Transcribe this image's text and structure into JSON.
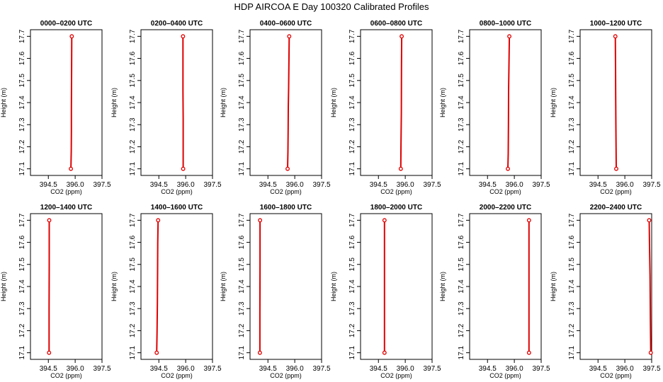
{
  "title": "HDP AIRCOA E  Day 100320  Calibrated Profiles",
  "style": {
    "line_color": "#e00000",
    "frame_color": "#000000"
  },
  "chart_data": [
    {
      "type": "line",
      "title": "0000–0200 UTC",
      "xlabel": "CO2 (ppm)",
      "ylabel": "Height (m)",
      "xlim": [
        393.5,
        397.5
      ],
      "ylim": [
        17.07,
        17.73
      ],
      "xticks": [
        "394.5",
        "396.0",
        "397.5"
      ],
      "yticks": [
        "17.1",
        "17.2",
        "17.3",
        "17.4",
        "17.5",
        "17.6",
        "17.7"
      ],
      "series": [
        {
          "x": [
            395.76,
            395.78,
            395.79,
            395.79,
            395.8,
            395.81
          ],
          "y": [
            17.1,
            17.18,
            17.27,
            17.37,
            17.56,
            17.7
          ]
        }
      ]
    },
    {
      "type": "line",
      "title": "0200–0400 UTC",
      "xlabel": "CO2 (ppm)",
      "ylabel": "Height (m)",
      "xlim": [
        393.5,
        397.5
      ],
      "ylim": [
        17.07,
        17.73
      ],
      "xticks": [
        "394.5",
        "396.0",
        "397.5"
      ],
      "yticks": [
        "17.1",
        "17.2",
        "17.3",
        "17.4",
        "17.5",
        "17.6",
        "17.7"
      ],
      "series": [
        {
          "x": [
            395.86,
            395.86,
            395.85,
            395.85
          ],
          "y": [
            17.1,
            17.33,
            17.45,
            17.7
          ]
        }
      ]
    },
    {
      "type": "line",
      "title": "0400–0600 UTC",
      "xlabel": "CO2 (ppm)",
      "ylabel": "Height (m)",
      "xlim": [
        393.5,
        397.5
      ],
      "ylim": [
        17.07,
        17.73
      ],
      "xticks": [
        "394.5",
        "396.0",
        "397.5"
      ],
      "yticks": [
        "17.1",
        "17.2",
        "17.3",
        "17.4",
        "17.5",
        "17.6",
        "17.7"
      ],
      "series": [
        {
          "x": [
            395.6,
            395.62,
            395.63,
            395.64,
            395.66,
            395.69
          ],
          "y": [
            17.1,
            17.18,
            17.28,
            17.38,
            17.47,
            17.7
          ]
        }
      ]
    },
    {
      "type": "line",
      "title": "0600–0800 UTC",
      "xlabel": "CO2 (ppm)",
      "ylabel": "Height (m)",
      "xlim": [
        393.5,
        397.5
      ],
      "ylim": [
        17.07,
        17.73
      ],
      "xticks": [
        "394.5",
        "396.0",
        "397.5"
      ],
      "yticks": [
        "17.1",
        "17.2",
        "17.3",
        "17.4",
        "17.5",
        "17.6",
        "17.7"
      ],
      "series": [
        {
          "x": [
            395.75,
            395.76,
            395.78,
            395.79,
            395.8
          ],
          "y": [
            17.1,
            17.21,
            17.35,
            17.56,
            17.7
          ]
        }
      ]
    },
    {
      "type": "line",
      "title": "0800–1000 UTC",
      "xlabel": "CO2 (ppm)",
      "ylabel": "Height (m)",
      "xlim": [
        393.5,
        397.5
      ],
      "ylim": [
        17.07,
        17.73
      ],
      "xticks": [
        "394.5",
        "396.0",
        "397.5"
      ],
      "yticks": [
        "17.1",
        "17.2",
        "17.3",
        "17.4",
        "17.5",
        "17.6",
        "17.7"
      ],
      "series": [
        {
          "x": [
            395.64,
            395.66,
            395.67,
            395.68,
            395.7,
            395.72
          ],
          "y": [
            17.1,
            17.17,
            17.3,
            17.45,
            17.56,
            17.7
          ]
        }
      ]
    },
    {
      "type": "line",
      "title": "1000–1200 UTC",
      "xlabel": "CO2 (ppm)",
      "ylabel": "Height (m)",
      "xlim": [
        393.5,
        397.5
      ],
      "ylim": [
        17.07,
        17.73
      ],
      "xticks": [
        "394.5",
        "396.0",
        "397.5"
      ],
      "yticks": [
        "17.1",
        "17.2",
        "17.3",
        "17.4",
        "17.5",
        "17.6",
        "17.7"
      ],
      "series": [
        {
          "x": [
            395.52,
            395.5,
            395.49,
            395.48,
            395.47
          ],
          "y": [
            17.1,
            17.29,
            17.43,
            17.56,
            17.7
          ]
        }
      ]
    },
    {
      "type": "line",
      "title": "1200–1400 UTC",
      "xlabel": "CO2 (ppm)",
      "ylabel": "Height (m)",
      "xlim": [
        393.5,
        397.5
      ],
      "ylim": [
        17.07,
        17.73
      ],
      "xticks": [
        "394.5",
        "396.0",
        "397.5"
      ],
      "yticks": [
        "17.1",
        "17.2",
        "17.3",
        "17.4",
        "17.5",
        "17.6",
        "17.7"
      ],
      "series": [
        {
          "x": [
            394.54,
            394.54,
            394.55,
            394.55
          ],
          "y": [
            17.1,
            17.3,
            17.5,
            17.7
          ]
        }
      ]
    },
    {
      "type": "line",
      "title": "1400–1600 UTC",
      "xlabel": "CO2 (ppm)",
      "ylabel": "Height (m)",
      "xlim": [
        393.5,
        397.5
      ],
      "ylim": [
        17.07,
        17.73
      ],
      "xticks": [
        "394.5",
        "396.0",
        "397.5"
      ],
      "yticks": [
        "17.1",
        "17.2",
        "17.3",
        "17.4",
        "17.5",
        "17.6",
        "17.7"
      ],
      "series": [
        {
          "x": [
            394.38,
            394.4,
            394.42,
            394.43,
            394.44,
            394.46
          ],
          "y": [
            17.1,
            17.19,
            17.33,
            17.48,
            17.6,
            17.7
          ]
        }
      ]
    },
    {
      "type": "line",
      "title": "1600–1800 UTC",
      "xlabel": "CO2 (ppm)",
      "ylabel": "Height (m)",
      "xlim": [
        393.5,
        397.5
      ],
      "ylim": [
        17.07,
        17.73
      ],
      "xticks": [
        "394.5",
        "396.0",
        "397.5"
      ],
      "yticks": [
        "17.1",
        "17.2",
        "17.3",
        "17.4",
        "17.5",
        "17.6",
        "17.7"
      ],
      "series": [
        {
          "x": [
            394.05,
            394.05,
            394.06,
            394.06
          ],
          "y": [
            17.1,
            17.28,
            17.5,
            17.7
          ]
        }
      ]
    },
    {
      "type": "line",
      "title": "1800–2000 UTC",
      "xlabel": "CO2 (ppm)",
      "ylabel": "Height (m)",
      "xlim": [
        393.5,
        397.5
      ],
      "ylim": [
        17.07,
        17.73
      ],
      "xticks": [
        "394.5",
        "396.0",
        "397.5"
      ],
      "yticks": [
        "17.1",
        "17.2",
        "17.3",
        "17.4",
        "17.5",
        "17.6",
        "17.7"
      ],
      "series": [
        {
          "x": [
            394.84,
            394.84
          ],
          "y": [
            17.1,
            17.7
          ]
        }
      ]
    },
    {
      "type": "line",
      "title": "2000–2200 UTC",
      "xlabel": "CO2 (ppm)",
      "ylabel": "Height (m)",
      "xlim": [
        393.5,
        397.5
      ],
      "ylim": [
        17.07,
        17.73
      ],
      "xticks": [
        "394.5",
        "396.0",
        "397.5"
      ],
      "yticks": [
        "17.1",
        "17.2",
        "17.3",
        "17.4",
        "17.5",
        "17.6",
        "17.7"
      ],
      "series": [
        {
          "x": [
            396.82,
            396.82
          ],
          "y": [
            17.1,
            17.7
          ]
        }
      ]
    },
    {
      "type": "line",
      "title": "2200–2400 UTC",
      "xlabel": "CO2 (ppm)",
      "ylabel": "Height (m)",
      "xlim": [
        393.5,
        397.5
      ],
      "ylim": [
        17.07,
        17.73
      ],
      "xticks": [
        "394.5",
        "396.0",
        "397.5"
      ],
      "yticks": [
        "17.1",
        "17.2",
        "17.3",
        "17.4",
        "17.5",
        "17.6",
        "17.7"
      ],
      "series": [
        {
          "x": [
            397.45,
            397.43,
            397.41,
            397.38,
            397.36
          ],
          "y": [
            17.1,
            17.25,
            17.45,
            17.58,
            17.7
          ]
        }
      ]
    }
  ]
}
